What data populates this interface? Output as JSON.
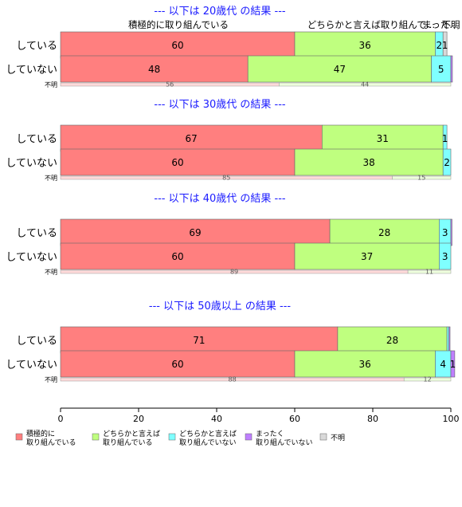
{
  "chart_data": {
    "type": "bar",
    "orientation": "horizontal",
    "stacked": true,
    "percent": true,
    "xlim": [
      0,
      100
    ],
    "x_ticks": [
      0,
      20,
      40,
      60,
      80,
      100
    ],
    "top_labels": [
      "積極的に取り組んでいる",
      "どちらかと言えば取り組んで…",
      "まった…",
      "不明"
    ],
    "legend": {
      "position": "bottom",
      "entries": [
        {
          "lines": [
            "積極的に",
            "取り組んでいる"
          ],
          "color": "#ff7f7f"
        },
        {
          "lines": [
            "どちらかと言えば",
            "取り組んでいる"
          ],
          "color": "#bfff7f"
        },
        {
          "lines": [
            "どちらかと言えば",
            "取り組んでいない"
          ],
          "color": "#7fffff"
        },
        {
          "lines": [
            "まったく",
            "取り組んでいない"
          ],
          "color": "#bf7fff"
        },
        {
          "lines": [
            "不明"
          ],
          "color": "#d9d9d9"
        }
      ]
    },
    "na_colors": [
      "#ffdada",
      "#eeffdd"
    ],
    "groups": [
      {
        "title": "--- 以下は 20歳代 の結果 ---",
        "rows": [
          {
            "label": "している",
            "values": [
              60,
              36,
              2,
              0,
              1
            ],
            "value_labels": [
              "60",
              "36",
              "2",
              "",
              "1"
            ]
          },
          {
            "label": "していない",
            "values": [
              48,
              47,
              5,
              0.4,
              0
            ],
            "value_labels": [
              "48",
              "47",
              "5",
              "",
              ""
            ]
          }
        ],
        "na_row": {
          "label": "不明",
          "values": [
            56,
            44
          ],
          "value_labels": [
            "56",
            "44"
          ]
        }
      },
      {
        "title": "--- 以下は 30歳代 の結果 ---",
        "rows": [
          {
            "label": "している",
            "values": [
              67,
              31,
              1,
              0,
              0
            ],
            "value_labels": [
              "67",
              "31",
              "1",
              "",
              ""
            ]
          },
          {
            "label": "していない",
            "values": [
              60,
              38,
              2,
              0,
              0
            ],
            "value_labels": [
              "60",
              "38",
              "2",
              "",
              ""
            ]
          }
        ],
        "na_row": {
          "label": "不明",
          "values": [
            85,
            15
          ],
          "value_labels": [
            "85",
            "15"
          ]
        }
      },
      {
        "title": "--- 以下は 40歳代 の結果 ---",
        "rows": [
          {
            "label": "している",
            "values": [
              69,
              28,
              3,
              0.3,
              0
            ],
            "value_labels": [
              "69",
              "28",
              "3",
              "",
              ""
            ]
          },
          {
            "label": "していない",
            "values": [
              60,
              37,
              3,
              0,
              0
            ],
            "value_labels": [
              "60",
              "37",
              "3",
              "",
              ""
            ]
          }
        ],
        "na_row": {
          "label": "不明",
          "values": [
            89,
            11
          ],
          "value_labels": [
            "89",
            "11"
          ]
        }
      },
      {
        "title": "--- 以下は 50歳以上 の結果 ---",
        "rows": [
          {
            "label": "している",
            "values": [
              71,
              28,
              0.5,
              0.3,
              0
            ],
            "value_labels": [
              "71",
              "28",
              "",
              "",
              ""
            ]
          },
          {
            "label": "していない",
            "values": [
              60,
              36,
              4,
              1,
              0
            ],
            "value_labels": [
              "60",
              "36",
              "4",
              "1",
              ""
            ]
          }
        ],
        "na_row": {
          "label": "不明",
          "values": [
            88,
            12
          ],
          "value_labels": [
            "88",
            "12"
          ]
        }
      }
    ]
  }
}
